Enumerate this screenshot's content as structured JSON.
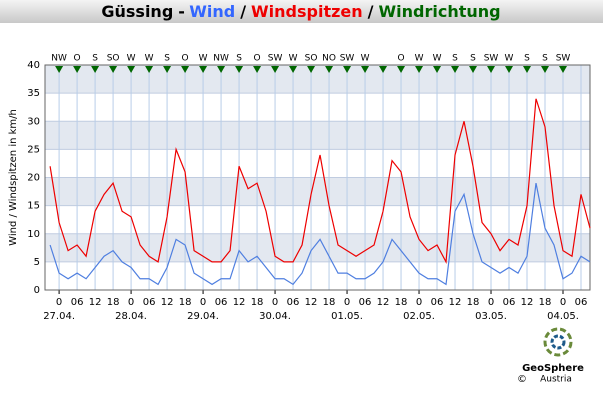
{
  "chart_data": {
    "type": "line",
    "title_parts": [
      {
        "text": "Güssing",
        "color": "#000000"
      },
      {
        "text": "-",
        "color": "#000000"
      },
      {
        "text": "Wind",
        "color": "#3366ff"
      },
      {
        "text": "/",
        "color": "#000000"
      },
      {
        "text": "Windspitzen",
        "color": "#ee0000"
      },
      {
        "text": "/",
        "color": "#000000"
      },
      {
        "text": "Windrichtung",
        "color": "#006600"
      }
    ],
    "y_label": "Wind / Windspitzen in km/h",
    "x": [
      -3,
      0,
      3,
      6,
      9,
      12,
      15,
      18,
      21,
      24,
      27,
      30,
      33,
      36,
      39,
      42,
      45,
      48,
      51,
      54,
      57,
      60,
      63,
      66,
      69,
      72,
      75,
      78,
      81,
      84,
      87,
      90,
      93,
      96,
      99,
      102,
      105,
      108,
      111,
      114,
      117,
      120,
      123,
      126,
      129,
      132,
      135,
      138,
      141,
      144,
      147,
      150,
      153,
      156,
      159,
      162,
      165,
      168,
      171,
      174,
      177
    ],
    "series": [
      {
        "name": "Windspitzen",
        "color": "#ee0000",
        "values": [
          22,
          12,
          7,
          8,
          6,
          14,
          17,
          19,
          14,
          13,
          8,
          6,
          5,
          13,
          25,
          21,
          7,
          6,
          5,
          5,
          7,
          22,
          18,
          19,
          14,
          6,
          5,
          5,
          8,
          17,
          24,
          15,
          8,
          7,
          6,
          7,
          8,
          14,
          23,
          21,
          13,
          9,
          7,
          8,
          5,
          24,
          30,
          22,
          12,
          10,
          7,
          9,
          8,
          15,
          34,
          29,
          15,
          7,
          6,
          17,
          11
        ]
      },
      {
        "name": "Wind",
        "color": "#4f7fe0",
        "values": [
          8,
          3,
          2,
          3,
          2,
          4,
          6,
          7,
          5,
          4,
          2,
          2,
          1,
          4,
          9,
          8,
          3,
          2,
          1,
          2,
          2,
          7,
          5,
          6,
          4,
          2,
          2,
          1,
          3,
          7,
          9,
          6,
          3,
          3,
          2,
          2,
          3,
          5,
          9,
          7,
          5,
          3,
          2,
          2,
          1,
          14,
          17,
          10,
          5,
          4,
          3,
          4,
          3,
          6,
          19,
          11,
          8,
          2,
          3,
          6,
          5
        ]
      }
    ],
    "directions": {
      "color": "#006600",
      "x": [
        0,
        6,
        12,
        18,
        24,
        30,
        36,
        42,
        48,
        54,
        60,
        66,
        72,
        78,
        84,
        90,
        96,
        102,
        108,
        114,
        120,
        126,
        132,
        138,
        144,
        150,
        156,
        162,
        168
      ],
      "labels": [
        "NW",
        "O",
        "S",
        "SO",
        "W",
        "W",
        "S",
        "O",
        "W",
        "NW",
        "S",
        "O",
        "SW",
        "W",
        "SO",
        "NO",
        "SW",
        "W",
        null,
        "O",
        "W",
        "W",
        "S",
        "S",
        "SW",
        "W",
        "S",
        "S",
        "SW"
      ]
    },
    "xlim": [
      -4.7,
      177
    ],
    "xticks": [
      0,
      {
        "value": 6,
        "label": "06"
      },
      12,
      18,
      {
        "value": 24,
        "label": "0"
      },
      {
        "value": 30,
        "label": "06"
      },
      {
        "value": 36,
        "label": "12"
      },
      {
        "value": 42,
        "label": "18"
      },
      {
        "value": 48,
        "label": "0"
      },
      {
        "value": 54,
        "label": "06"
      },
      {
        "value": 60,
        "label": "12"
      },
      {
        "value": 66,
        "label": "18"
      },
      {
        "value": 72,
        "label": "0"
      },
      {
        "value": 78,
        "label": "06"
      },
      {
        "value": 84,
        "label": "12"
      },
      {
        "value": 90,
        "label": "18"
      },
      {
        "value": 96,
        "label": "0"
      },
      {
        "value": 102,
        "label": "06"
      },
      {
        "value": 108,
        "label": "12"
      },
      {
        "value": 114,
        "label": "18"
      },
      {
        "value": 120,
        "label": "0"
      },
      {
        "value": 126,
        "label": "06"
      },
      {
        "value": 132,
        "label": "12"
      },
      {
        "value": 138,
        "label": "18"
      },
      {
        "value": 144,
        "label": "0"
      },
      {
        "value": 150,
        "label": "06"
      },
      {
        "value": 156,
        "label": "12"
      },
      {
        "value": 162,
        "label": "18"
      },
      {
        "value": 168,
        "label": "0"
      },
      {
        "value": 174,
        "label": "06"
      }
    ],
    "day_labels": [
      {
        "value": 0,
        "label": "27.04."
      },
      {
        "value": 24,
        "label": "28.04."
      },
      {
        "value": 48,
        "label": "29.04."
      },
      {
        "value": 72,
        "label": "30.04."
      },
      {
        "value": 96,
        "label": "01.05."
      },
      {
        "value": 120,
        "label": "02.05."
      },
      {
        "value": 144,
        "label": "03.05."
      },
      {
        "value": 168,
        "label": "04.05."
      }
    ],
    "ylim": [
      0,
      40
    ],
    "yticks": [
      0,
      5,
      10,
      15,
      20,
      25,
      30,
      35,
      40
    ],
    "grid": true,
    "logo": {
      "name": "GeoSphere",
      "sub": "Austria",
      "copyright": "©"
    }
  }
}
